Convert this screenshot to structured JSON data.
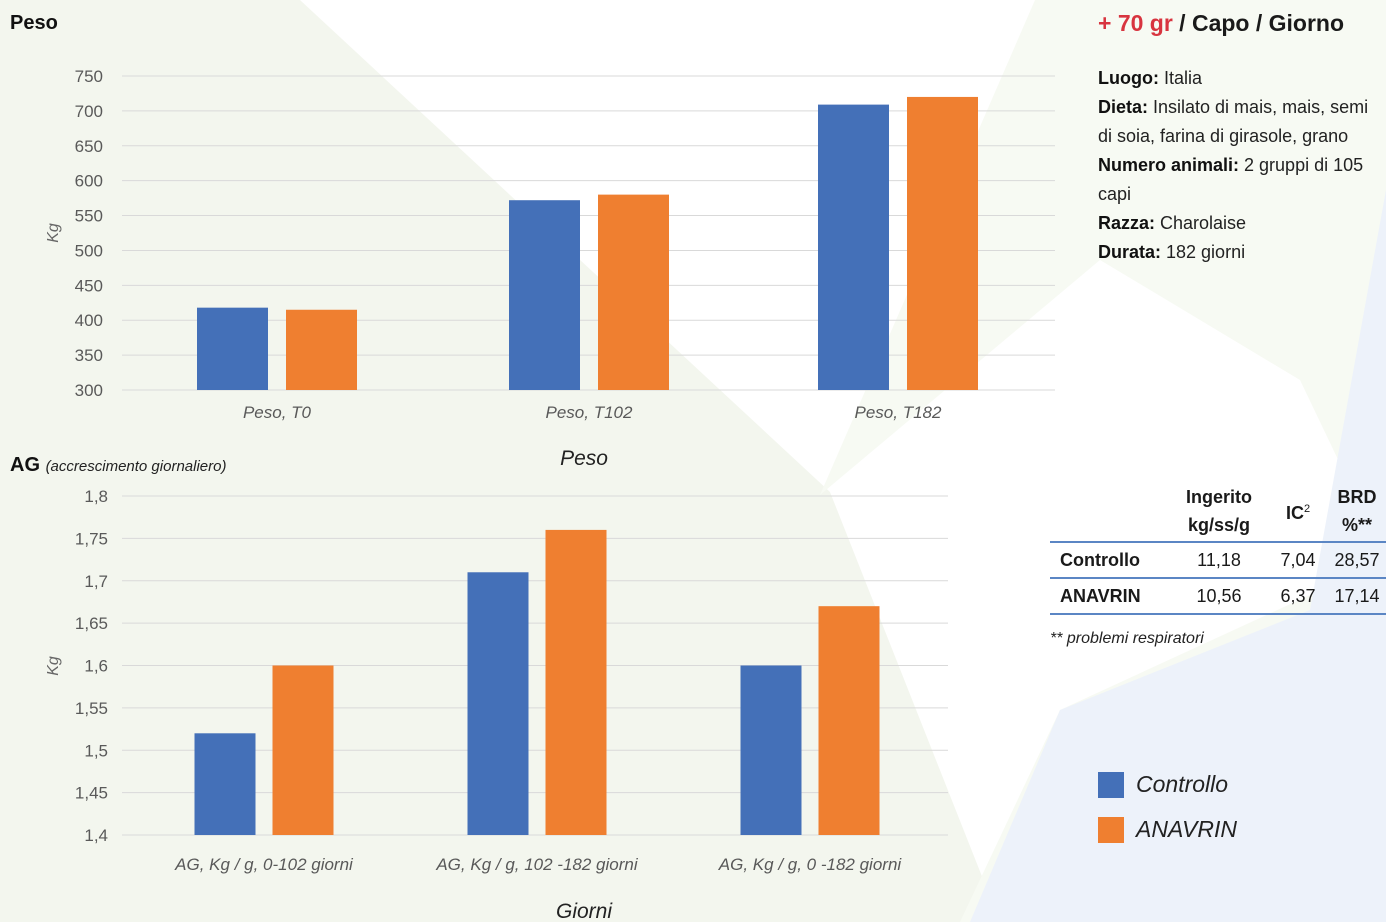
{
  "headline": {
    "gain": "+ 70 gr",
    "rest": " / Capo / Giorno"
  },
  "info": [
    {
      "label": "Luogo:",
      "value": " Italia"
    },
    {
      "label": "Dieta:",
      "value": " Insilato di mais, mais, semi di soia, farina di girasole, grano"
    },
    {
      "label": "Numero animali:",
      "value": " 2 gruppi di 105 capi"
    },
    {
      "label": "Razza:",
      "value": " Charolaise"
    },
    {
      "label": "Durata:",
      "value": " 182 giorni"
    }
  ],
  "table": {
    "headers": [
      "",
      "Ingerito kg/ss/g",
      "IC",
      "BRD %**"
    ],
    "ic_superscript": "2",
    "rows": [
      {
        "label": "Controllo",
        "cells": [
          "11,18",
          "7,04",
          "28,57"
        ]
      },
      {
        "label": "ANAVRIN",
        "cells": [
          "10,56",
          "6,37",
          "17,14"
        ]
      }
    ]
  },
  "footnote": "** problemi respiratori",
  "legend": [
    {
      "name": "Controllo",
      "color": "#4470b8"
    },
    {
      "name": "ANAVRIN",
      "color": "#ef7f30"
    }
  ],
  "colors": {
    "grid": "#d9d9d9",
    "tick_text": "#595959",
    "table_rule": "#5b86c4",
    "accent_red": "#d8343f"
  },
  "chart_data": [
    {
      "type": "bar",
      "title": "Peso",
      "subtitle": "",
      "xlabel": "Peso",
      "ylabel": "Kg",
      "ylim": [
        300,
        750
      ],
      "yticks": [
        "300",
        "350",
        "400",
        "450",
        "500",
        "550",
        "600",
        "650",
        "700",
        "750"
      ],
      "categories": [
        "Peso, T0",
        "Peso, T102",
        "Peso, T182"
      ],
      "series": [
        {
          "name": "Controllo",
          "values": [
            418,
            572,
            709
          ]
        },
        {
          "name": "ANAVRIN",
          "values": [
            415,
            580,
            720
          ]
        }
      ],
      "grid": true
    },
    {
      "type": "bar",
      "title": "AG",
      "subtitle": "(accrescimento giornaliero)",
      "xlabel": "Giorni",
      "ylabel": "Kg",
      "ylim": [
        1.4,
        1.8
      ],
      "yticks": [
        "1,4",
        "1,45",
        "1,5",
        "1,55",
        "1,6",
        "1,65",
        "1,7",
        "1,75",
        "1,8"
      ],
      "categories": [
        "AG, Kg / g, 0-102 giorni",
        "AG, Kg / g, 102 -182 giorni",
        "AG, Kg / g, 0 -182 giorni"
      ],
      "series": [
        {
          "name": "Controllo",
          "values": [
            1.52,
            1.71,
            1.6
          ]
        },
        {
          "name": "ANAVRIN",
          "values": [
            1.6,
            1.76,
            1.67
          ]
        }
      ],
      "grid": true
    }
  ]
}
